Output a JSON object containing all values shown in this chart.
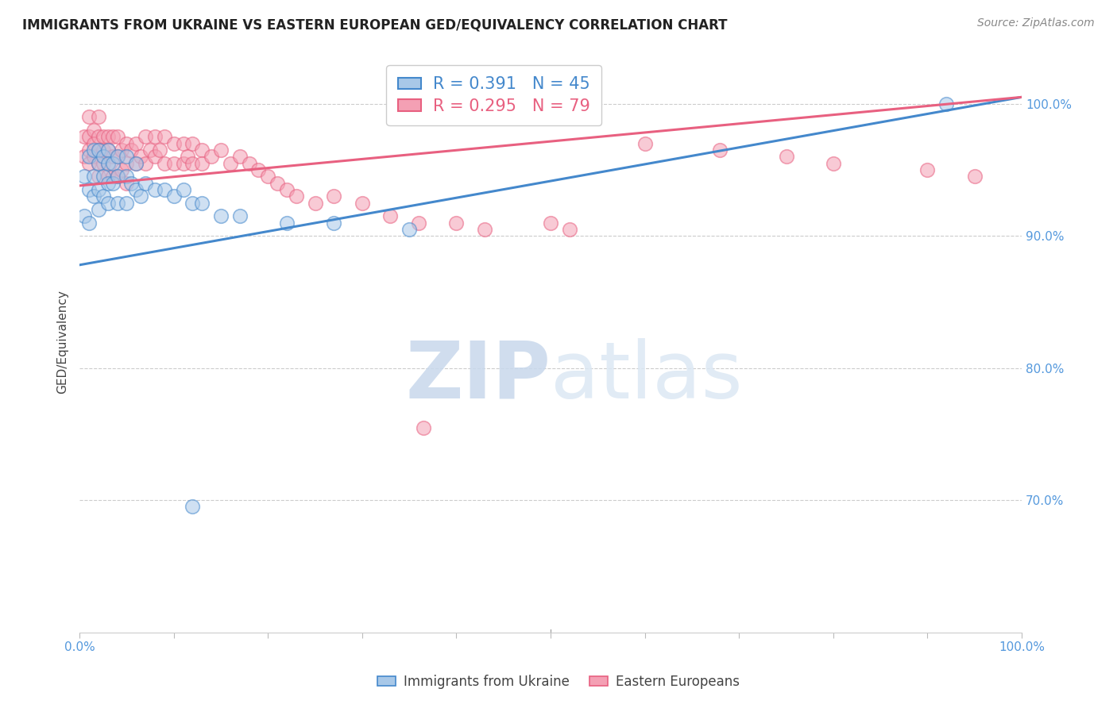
{
  "title": "IMMIGRANTS FROM UKRAINE VS EASTERN EUROPEAN GED/EQUIVALENCY CORRELATION CHART",
  "source": "Source: ZipAtlas.com",
  "ylabel": "GED/Equivalency",
  "ytick_labels": [
    "70.0%",
    "80.0%",
    "90.0%",
    "100.0%"
  ],
  "ytick_values": [
    0.7,
    0.8,
    0.9,
    1.0
  ],
  "xlim": [
    0.0,
    1.0
  ],
  "ylim": [
    0.6,
    1.04
  ],
  "blue_R": 0.391,
  "blue_N": 45,
  "pink_R": 0.295,
  "pink_N": 79,
  "blue_color": "#a8c8e8",
  "pink_color": "#f4a0b4",
  "blue_line_color": "#4488cc",
  "pink_line_color": "#e86080",
  "watermark_zip": "ZIP",
  "watermark_atlas": "atlas",
  "background_color": "#ffffff",
  "blue_x": [
    0.005,
    0.005,
    0.01,
    0.01,
    0.01,
    0.015,
    0.015,
    0.015,
    0.02,
    0.02,
    0.02,
    0.02,
    0.025,
    0.025,
    0.025,
    0.03,
    0.03,
    0.03,
    0.03,
    0.035,
    0.035,
    0.04,
    0.04,
    0.04,
    0.05,
    0.05,
    0.05,
    0.055,
    0.06,
    0.06,
    0.065,
    0.07,
    0.08,
    0.09,
    0.1,
    0.11,
    0.12,
    0.13,
    0.15,
    0.17,
    0.22,
    0.27,
    0.35,
    0.92,
    0.12
  ],
  "blue_y": [
    0.945,
    0.915,
    0.96,
    0.935,
    0.91,
    0.965,
    0.945,
    0.93,
    0.965,
    0.955,
    0.935,
    0.92,
    0.96,
    0.945,
    0.93,
    0.965,
    0.955,
    0.94,
    0.925,
    0.955,
    0.94,
    0.96,
    0.945,
    0.925,
    0.96,
    0.945,
    0.925,
    0.94,
    0.955,
    0.935,
    0.93,
    0.94,
    0.935,
    0.935,
    0.93,
    0.935,
    0.925,
    0.925,
    0.915,
    0.915,
    0.91,
    0.91,
    0.905,
    1.0,
    0.695
  ],
  "pink_x": [
    0.005,
    0.005,
    0.01,
    0.01,
    0.01,
    0.01,
    0.015,
    0.015,
    0.015,
    0.02,
    0.02,
    0.02,
    0.02,
    0.02,
    0.025,
    0.025,
    0.025,
    0.03,
    0.03,
    0.03,
    0.03,
    0.035,
    0.035,
    0.035,
    0.04,
    0.04,
    0.04,
    0.045,
    0.045,
    0.05,
    0.05,
    0.05,
    0.055,
    0.06,
    0.06,
    0.065,
    0.07,
    0.07,
    0.075,
    0.08,
    0.08,
    0.085,
    0.09,
    0.09,
    0.1,
    0.1,
    0.11,
    0.11,
    0.115,
    0.12,
    0.12,
    0.13,
    0.13,
    0.14,
    0.15,
    0.16,
    0.17,
    0.18,
    0.19,
    0.2,
    0.21,
    0.22,
    0.23,
    0.25,
    0.27,
    0.3,
    0.33,
    0.36,
    0.4,
    0.43,
    0.5,
    0.52,
    0.6,
    0.68,
    0.75,
    0.8,
    0.9,
    0.95,
    0.365
  ],
  "pink_y": [
    0.975,
    0.96,
    0.99,
    0.975,
    0.965,
    0.955,
    0.98,
    0.97,
    0.96,
    0.99,
    0.975,
    0.965,
    0.955,
    0.945,
    0.975,
    0.965,
    0.955,
    0.975,
    0.965,
    0.955,
    0.945,
    0.975,
    0.96,
    0.945,
    0.975,
    0.96,
    0.945,
    0.965,
    0.95,
    0.97,
    0.955,
    0.94,
    0.965,
    0.97,
    0.955,
    0.96,
    0.975,
    0.955,
    0.965,
    0.975,
    0.96,
    0.965,
    0.975,
    0.955,
    0.97,
    0.955,
    0.97,
    0.955,
    0.96,
    0.97,
    0.955,
    0.965,
    0.955,
    0.96,
    0.965,
    0.955,
    0.96,
    0.955,
    0.95,
    0.945,
    0.94,
    0.935,
    0.93,
    0.925,
    0.93,
    0.925,
    0.915,
    0.91,
    0.91,
    0.905,
    0.91,
    0.905,
    0.97,
    0.965,
    0.96,
    0.955,
    0.95,
    0.945,
    0.755
  ]
}
